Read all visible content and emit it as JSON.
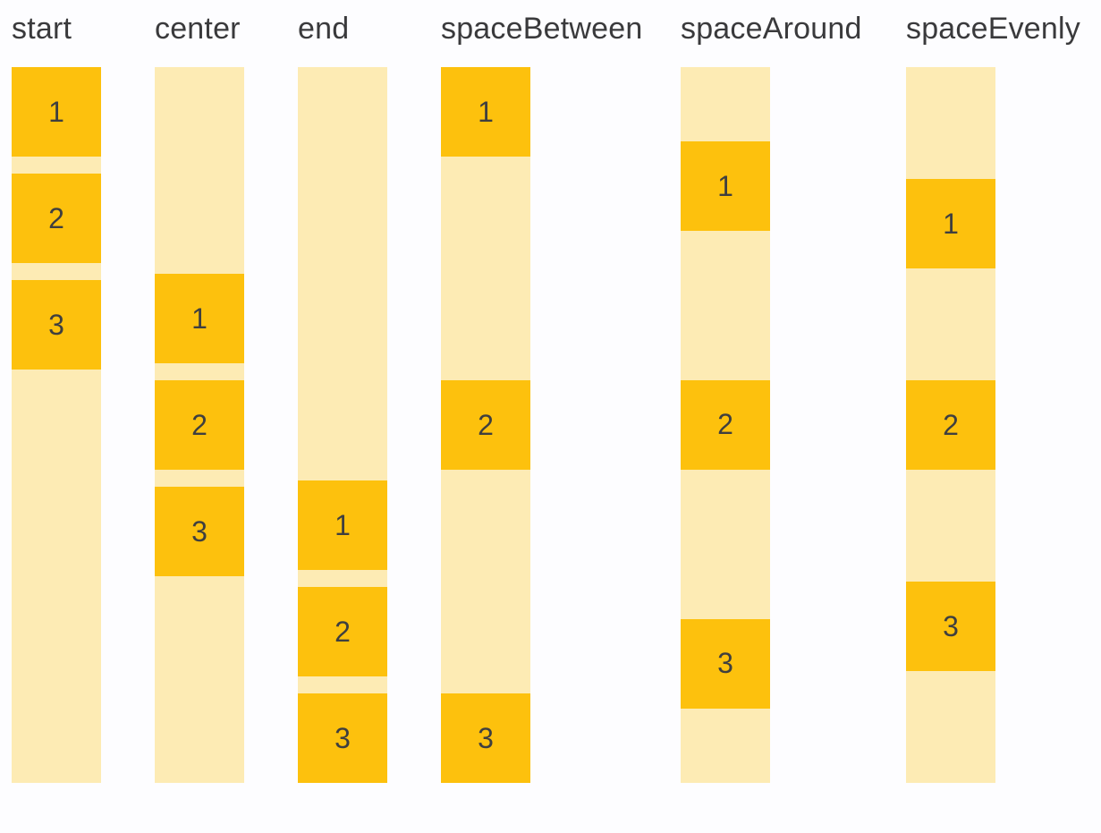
{
  "diagram": {
    "columns": [
      {
        "label": "start",
        "justify": "start",
        "items": [
          "1",
          "2",
          "3"
        ]
      },
      {
        "label": "center",
        "justify": "center",
        "items": [
          "1",
          "2",
          "3"
        ]
      },
      {
        "label": "end",
        "justify": "end",
        "items": [
          "1",
          "2",
          "3"
        ]
      },
      {
        "label": "spaceBetween",
        "justify": "spaceBetween",
        "items": [
          "1",
          "2",
          "3"
        ]
      },
      {
        "label": "spaceAround",
        "justify": "spaceAround",
        "items": [
          "1",
          "2",
          "3"
        ]
      },
      {
        "label": "spaceEvenly",
        "justify": "spaceEvenly",
        "items": [
          "1",
          "2",
          "3"
        ]
      }
    ],
    "colors": {
      "page_background": "#FDFDFF",
      "track": "#FDEBB4",
      "item": "#FDC10D",
      "label_text": "#3A3A3C",
      "item_text": "#3F3F3F"
    }
  }
}
